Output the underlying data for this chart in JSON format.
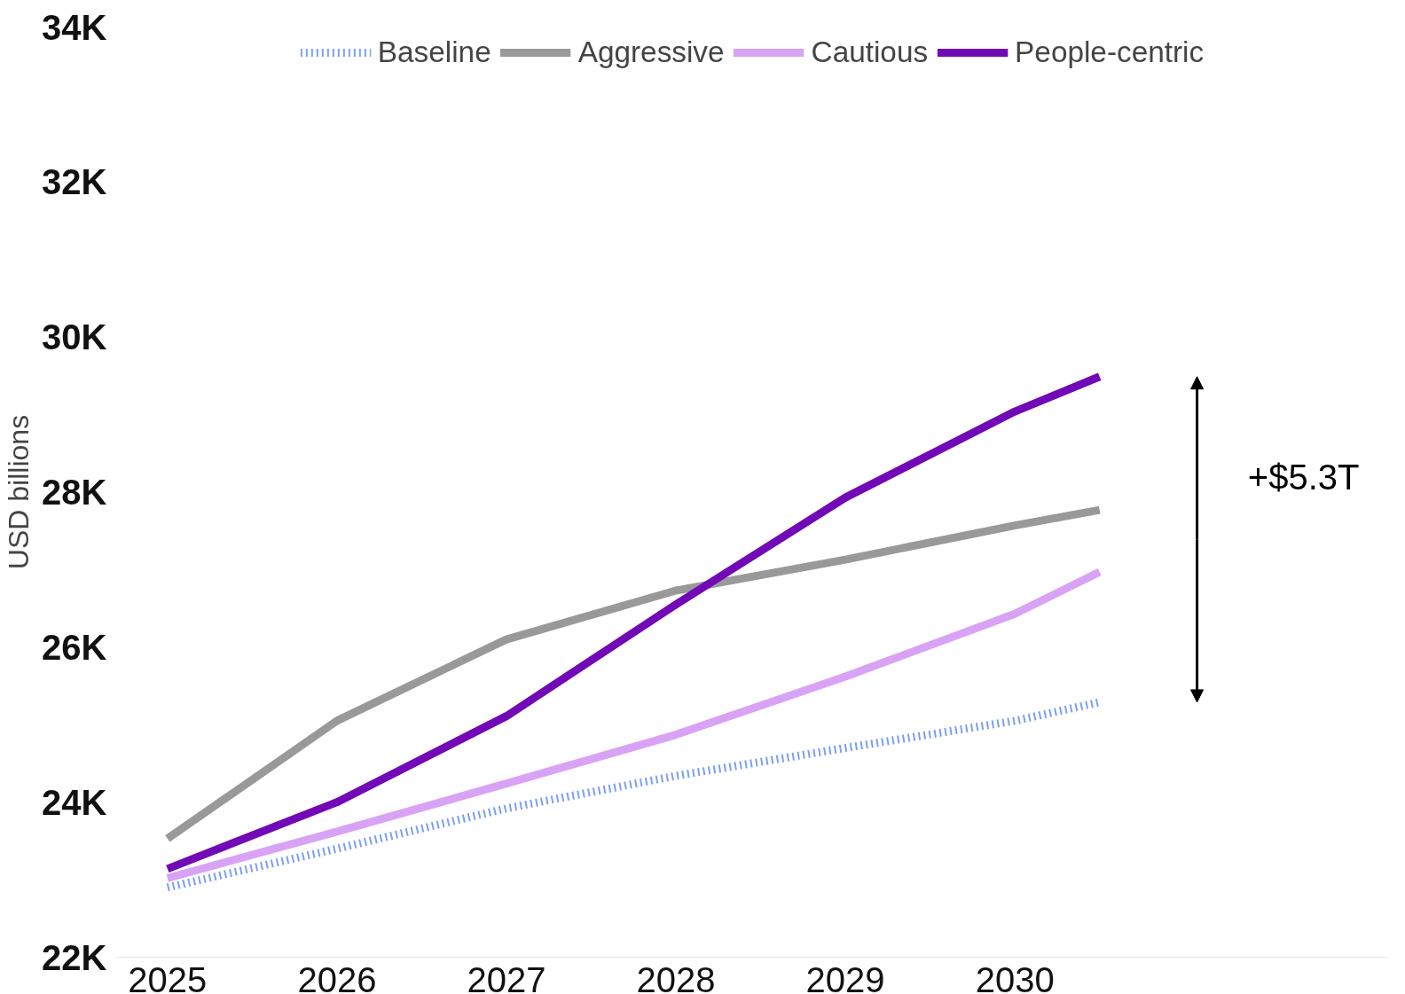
{
  "chart_data": {
    "type": "line",
    "ylabel": "USD billions",
    "x": [
      2025,
      2026,
      2027,
      2028,
      2029,
      2030,
      2030.5
    ],
    "series": [
      {
        "name": "Baseline",
        "color": "#7b9ff2",
        "line_style": "dotted",
        "values": [
          22900,
          23400,
          23920,
          24340,
          24700,
          25050,
          25290
        ]
      },
      {
        "name": "Aggressive",
        "color": "#999999",
        "line_style": "solid",
        "values": [
          23530,
          25050,
          26100,
          26730,
          27130,
          27570,
          27770
        ]
      },
      {
        "name": "Cautious",
        "color": "#d9a3f5",
        "line_style": "solid",
        "values": [
          23020,
          23620,
          24240,
          24870,
          25620,
          26430,
          26970
        ]
      },
      {
        "name": "People-centric",
        "color": "#7209b7",
        "line_style": "solid",
        "values": [
          23140,
          24000,
          25110,
          26550,
          27930,
          29040,
          29490
        ]
      }
    ],
    "xlim": [
      2024.7,
      2032.2
    ],
    "xticks": [
      2025,
      2026,
      2027,
      2028,
      2029,
      2030
    ],
    "ylim": [
      22000,
      34000
    ],
    "yticks": [
      {
        "value": 22000,
        "label": "22K"
      },
      {
        "value": 24000,
        "label": "24K"
      },
      {
        "value": 26000,
        "label": "26K"
      },
      {
        "value": 28000,
        "label": "28K"
      },
      {
        "value": 30000,
        "label": "30K"
      },
      {
        "value": 32000,
        "label": "32K"
      },
      {
        "value": 34000,
        "label": "34K"
      }
    ],
    "grid": false,
    "legend": "top",
    "marker": "none",
    "annotations": [
      "+$5.3T"
    ]
  }
}
